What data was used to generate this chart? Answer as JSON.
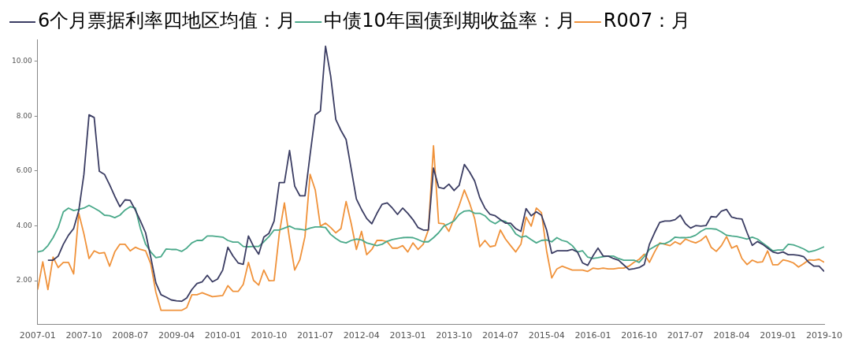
{
  "chart_data": {
    "type": "line",
    "x": [
      "2007-01",
      "2007-02",
      "2007-03",
      "2007-04",
      "2007-05",
      "2007-06",
      "2007-07",
      "2007-08",
      "2007-09",
      "2007-10",
      "2007-11",
      "2007-12",
      "2008-01",
      "2008-02",
      "2008-03",
      "2008-04",
      "2008-05",
      "2008-06",
      "2008-07",
      "2008-08",
      "2008-09",
      "2008-10",
      "2008-11",
      "2008-12",
      "2009-01",
      "2009-02",
      "2009-03",
      "2009-04",
      "2009-05",
      "2009-06",
      "2009-07",
      "2009-08",
      "2009-09",
      "2009-10",
      "2009-11",
      "2009-12",
      "2010-01",
      "2010-02",
      "2010-03",
      "2010-04",
      "2010-05",
      "2010-06",
      "2010-07",
      "2010-08",
      "2010-09",
      "2010-10",
      "2010-11",
      "2010-12",
      "2011-01",
      "2011-02",
      "2011-03",
      "2011-04",
      "2011-05",
      "2011-06",
      "2011-07",
      "2011-08",
      "2011-09",
      "2011-10",
      "2011-11",
      "2011-12",
      "2012-01",
      "2012-02",
      "2012-03",
      "2012-04",
      "2012-05",
      "2012-06",
      "2012-07",
      "2012-08",
      "2012-09",
      "2012-10",
      "2012-11",
      "2012-12",
      "2013-01",
      "2013-02",
      "2013-03",
      "2013-04",
      "2013-05",
      "2013-06",
      "2013-07",
      "2013-08",
      "2013-09",
      "2013-10",
      "2013-11",
      "2013-12",
      "2014-01",
      "2014-02",
      "2014-03",
      "2014-04",
      "2014-05",
      "2014-06",
      "2014-07",
      "2014-08",
      "2014-09",
      "2014-10",
      "2014-11",
      "2014-12",
      "2015-01",
      "2015-02",
      "2015-03",
      "2015-04",
      "2015-05",
      "2015-06",
      "2015-07",
      "2015-08",
      "2015-09",
      "2015-10",
      "2015-11",
      "2015-12",
      "2016-01",
      "2016-02",
      "2016-03",
      "2016-04",
      "2016-05",
      "2016-06",
      "2016-07",
      "2016-08",
      "2016-09",
      "2016-10",
      "2016-11",
      "2016-12",
      "2017-01",
      "2017-02",
      "2017-03",
      "2017-04",
      "2017-05",
      "2017-06",
      "2017-07",
      "2017-08",
      "2017-09",
      "2017-10",
      "2017-11",
      "2017-12",
      "2018-01",
      "2018-02",
      "2018-03",
      "2018-04",
      "2018-05",
      "2018-06",
      "2018-07",
      "2018-08",
      "2018-09",
      "2018-10",
      "2018-11",
      "2018-12",
      "2019-01",
      "2019-02",
      "2019-03",
      "2019-04",
      "2019-05",
      "2019-06",
      "2019-07",
      "2019-08",
      "2019-09",
      "2019-10"
    ],
    "series": [
      {
        "name": "6个月票据利率四地区均值：月",
        "color": "#3b3d63",
        "values": [
          null,
          null,
          2.75,
          2.75,
          2.9,
          3.33,
          3.66,
          3.9,
          4.56,
          5.88,
          8.05,
          7.95,
          5.99,
          5.88,
          5.5,
          5.08,
          4.7,
          4.95,
          4.93,
          4.58,
          4.18,
          3.75,
          2.86,
          1.92,
          1.49,
          1.4,
          1.3,
          1.27,
          1.25,
          1.37,
          1.68,
          1.9,
          1.96,
          2.2,
          1.96,
          2.06,
          2.39,
          3.22,
          2.9,
          2.65,
          2.6,
          3.63,
          3.25,
          2.97,
          3.59,
          3.73,
          4.18,
          5.58,
          5.58,
          6.75,
          5.45,
          5.1,
          5.1,
          6.6,
          8.05,
          8.19,
          10.55,
          9.46,
          7.88,
          7.48,
          7.15,
          6.07,
          4.98,
          4.6,
          4.27,
          4.08,
          4.46,
          4.79,
          4.84,
          4.65,
          4.42,
          4.65,
          4.46,
          4.23,
          3.94,
          3.85,
          3.85,
          6.11,
          5.41,
          5.36,
          5.52,
          5.29,
          5.48,
          6.24,
          5.97,
          5.64,
          5.03,
          4.65,
          4.42,
          4.37,
          4.23,
          4.1,
          4.1,
          3.9,
          3.8,
          4.63,
          4.37,
          4.51,
          4.39,
          3.85,
          3.0,
          3.09,
          3.09,
          3.09,
          3.14,
          3.05,
          2.65,
          2.56,
          2.9,
          3.19,
          2.9,
          2.9,
          2.81,
          2.75,
          2.58,
          2.41,
          2.44,
          2.48,
          2.59,
          3.33,
          3.75,
          4.13,
          4.18,
          4.18,
          4.23,
          4.39,
          4.08,
          3.92,
          4.01,
          3.99,
          4.01,
          4.34,
          4.32,
          4.54,
          4.6,
          4.32,
          4.27,
          4.25,
          3.75,
          3.29,
          3.43,
          3.33,
          3.19,
          3.05,
          3.0,
          3.05,
          2.95,
          2.95,
          2.93,
          2.88,
          2.67,
          2.53,
          2.53,
          2.34
        ]
      },
      {
        "name": "中债10年国债到期收益率：月",
        "color": "#4aa98a",
        "values": [
          3.05,
          3.09,
          3.28,
          3.57,
          3.94,
          4.51,
          4.65,
          4.56,
          4.6,
          4.65,
          4.75,
          4.65,
          4.54,
          4.39,
          4.37,
          4.3,
          4.39,
          4.58,
          4.7,
          4.65,
          3.9,
          3.33,
          3.05,
          2.84,
          2.88,
          3.16,
          3.14,
          3.14,
          3.07,
          3.19,
          3.38,
          3.47,
          3.47,
          3.63,
          3.63,
          3.61,
          3.59,
          3.47,
          3.41,
          3.41,
          3.25,
          3.24,
          3.25,
          3.25,
          3.42,
          3.61,
          3.85,
          3.85,
          3.92,
          3.99,
          3.9,
          3.88,
          3.85,
          3.92,
          3.96,
          3.96,
          3.94,
          3.69,
          3.54,
          3.42,
          3.38,
          3.47,
          3.52,
          3.49,
          3.38,
          3.33,
          3.28,
          3.33,
          3.44,
          3.5,
          3.54,
          3.57,
          3.58,
          3.57,
          3.5,
          3.42,
          3.42,
          3.57,
          3.75,
          3.99,
          4.08,
          4.18,
          4.42,
          4.54,
          4.56,
          4.46,
          4.46,
          4.37,
          4.18,
          4.08,
          4.2,
          4.16,
          3.99,
          3.71,
          3.59,
          3.63,
          3.5,
          3.38,
          3.47,
          3.49,
          3.42,
          3.57,
          3.47,
          3.42,
          3.28,
          3.05,
          3.09,
          2.86,
          2.81,
          2.84,
          2.88,
          2.9,
          2.9,
          2.81,
          2.75,
          2.75,
          2.75,
          2.67,
          2.88,
          3.14,
          3.25,
          3.35,
          3.35,
          3.44,
          3.59,
          3.57,
          3.57,
          3.59,
          3.66,
          3.8,
          3.9,
          3.9,
          3.88,
          3.78,
          3.66,
          3.63,
          3.61,
          3.57,
          3.52,
          3.59,
          3.52,
          3.38,
          3.24,
          3.09,
          3.12,
          3.12,
          3.33,
          3.31,
          3.24,
          3.16,
          3.05,
          3.09,
          3.16,
          3.24
        ]
      },
      {
        "name": "R007：月",
        "color": "#f0923a",
        "values": [
          1.68,
          2.69,
          1.68,
          2.86,
          2.48,
          2.67,
          2.67,
          2.25,
          4.46,
          3.71,
          2.81,
          3.09,
          3.0,
          3.03,
          2.53,
          3.05,
          3.33,
          3.33,
          3.09,
          3.22,
          3.14,
          3.09,
          2.62,
          1.58,
          0.92,
          0.92,
          0.92,
          0.92,
          0.92,
          1.02,
          1.49,
          1.49,
          1.56,
          1.49,
          1.42,
          1.44,
          1.46,
          1.82,
          1.61,
          1.61,
          1.87,
          2.67,
          2.01,
          1.84,
          2.39,
          2.0,
          2.01,
          3.71,
          4.84,
          3.52,
          2.39,
          2.76,
          3.61,
          5.88,
          5.31,
          3.99,
          4.1,
          3.94,
          3.75,
          3.9,
          4.89,
          4.08,
          3.14,
          3.8,
          2.95,
          3.14,
          3.47,
          3.47,
          3.42,
          3.19,
          3.19,
          3.28,
          3.05,
          3.38,
          3.14,
          3.33,
          3.85,
          6.92,
          4.1,
          4.08,
          3.8,
          4.27,
          4.75,
          5.31,
          4.84,
          4.27,
          3.24,
          3.47,
          3.24,
          3.28,
          3.85,
          3.52,
          3.28,
          3.05,
          3.33,
          4.32,
          3.99,
          4.65,
          4.48,
          3.09,
          2.1,
          2.43,
          2.53,
          2.46,
          2.39,
          2.39,
          2.39,
          2.34,
          2.46,
          2.43,
          2.46,
          2.43,
          2.43,
          2.46,
          2.46,
          2.53,
          2.67,
          2.78,
          2.97,
          2.67,
          3.05,
          3.38,
          3.33,
          3.28,
          3.42,
          3.33,
          3.52,
          3.44,
          3.38,
          3.47,
          3.63,
          3.22,
          3.07,
          3.28,
          3.61,
          3.19,
          3.28,
          2.81,
          2.59,
          2.75,
          2.67,
          2.69,
          3.09,
          2.58,
          2.58,
          2.76,
          2.72,
          2.65,
          2.5,
          2.62,
          2.76,
          2.75,
          2.78,
          2.67
        ]
      }
    ],
    "xlim": [
      "2007-01",
      "2019-10"
    ],
    "xticks": [
      "2007-01",
      "2007-10",
      "2008-07",
      "2009-04",
      "2010-01",
      "2010-10",
      "2011-07",
      "2012-04",
      "2013-01",
      "2013-10",
      "2014-07",
      "2015-04",
      "2016-01",
      "2016-10",
      "2017-07",
      "2018-04",
      "2019-01",
      "2019-10"
    ],
    "ylim": [
      0.4,
      10.8
    ],
    "yticks": [
      {
        "value": 2,
        "label": "2.00"
      },
      {
        "value": 4,
        "label": "4.00"
      },
      {
        "value": 6,
        "label": "6.00"
      },
      {
        "value": 8,
        "label": "8.00"
      },
      {
        "value": 10,
        "label": "10.00"
      }
    ],
    "grid": false,
    "legend": "top left",
    "marker": "none",
    "line_style": "solid"
  }
}
